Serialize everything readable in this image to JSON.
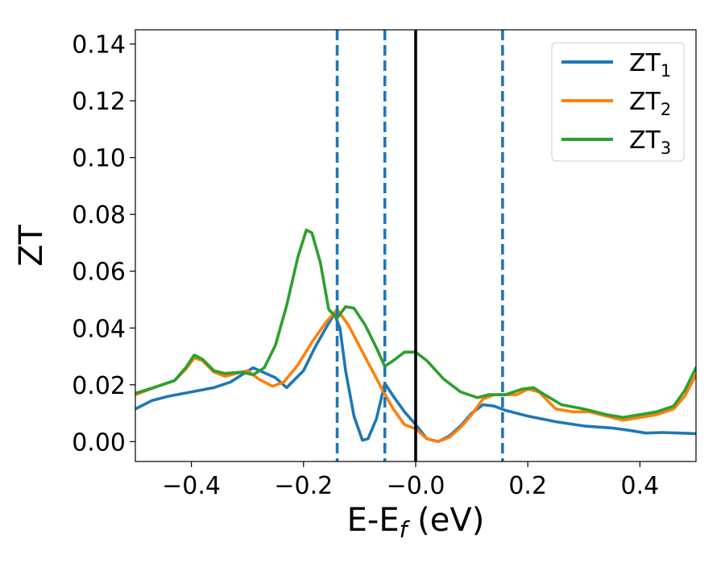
{
  "chart_data": {
    "type": "line",
    "title": "",
    "xlabel_main": "E-E",
    "xlabel_sub": "f",
    "xlabel_unit": " (eV)",
    "ylabel": "ZT",
    "xlim": [
      -0.5,
      0.5
    ],
    "ylim": [
      -0.007,
      0.145
    ],
    "xticks": [
      -0.4,
      -0.2,
      0.0,
      0.2,
      0.4
    ],
    "xtick_labels": [
      "−0.4",
      "−0.2",
      "−0.0",
      "0.2",
      "0.4"
    ],
    "yticks": [
      0.0,
      0.02,
      0.04,
      0.06,
      0.08,
      0.1,
      0.12,
      0.14
    ],
    "ytick_labels": [
      "0.00",
      "0.02",
      "0.04",
      "0.06",
      "0.08",
      "0.10",
      "0.12",
      "0.14"
    ],
    "grid": false,
    "legend_position": "top-right",
    "vlines": [
      {
        "x": -0.14,
        "style": "dashed",
        "color": "#1f77b4"
      },
      {
        "x": -0.055,
        "style": "dashed",
        "color": "#1f77b4"
      },
      {
        "x": 0.155,
        "style": "dashed",
        "color": "#1f77b4"
      },
      {
        "x": 0.0,
        "style": "solid",
        "color": "#000000"
      }
    ],
    "series": [
      {
        "name_base": "ZT",
        "name_sub": "1",
        "color": "#1f77b4",
        "points": [
          [
            -0.5,
            0.0115
          ],
          [
            -0.47,
            0.0145
          ],
          [
            -0.44,
            0.016
          ],
          [
            -0.4,
            0.0175
          ],
          [
            -0.36,
            0.019
          ],
          [
            -0.33,
            0.021
          ],
          [
            -0.31,
            0.0235
          ],
          [
            -0.29,
            0.026
          ],
          [
            -0.25,
            0.0225
          ],
          [
            -0.23,
            0.019
          ],
          [
            -0.2,
            0.025
          ],
          [
            -0.18,
            0.033
          ],
          [
            -0.16,
            0.04
          ],
          [
            -0.145,
            0.045
          ],
          [
            -0.135,
            0.04
          ],
          [
            -0.125,
            0.025
          ],
          [
            -0.11,
            0.009
          ],
          [
            -0.095,
            0.0005
          ],
          [
            -0.085,
            0.001
          ],
          [
            -0.07,
            0.008
          ],
          [
            -0.055,
            0.0205
          ],
          [
            -0.04,
            0.016
          ],
          [
            -0.02,
            0.0105
          ],
          [
            0.0,
            0.006
          ],
          [
            0.02,
            0.001
          ],
          [
            0.04,
            0.0
          ],
          [
            0.06,
            0.002
          ],
          [
            0.08,
            0.0055
          ],
          [
            0.1,
            0.01
          ],
          [
            0.12,
            0.013
          ],
          [
            0.14,
            0.0125
          ],
          [
            0.16,
            0.011
          ],
          [
            0.2,
            0.009
          ],
          [
            0.25,
            0.007
          ],
          [
            0.3,
            0.0055
          ],
          [
            0.35,
            0.0048
          ],
          [
            0.38,
            0.004
          ],
          [
            0.41,
            0.003
          ],
          [
            0.44,
            0.0032
          ],
          [
            0.47,
            0.003
          ],
          [
            0.5,
            0.0028
          ]
        ]
      },
      {
        "name_base": "ZT",
        "name_sub": "2",
        "color": "#ff7f0e",
        "points": [
          [
            -0.5,
            0.0165
          ],
          [
            -0.46,
            0.0195
          ],
          [
            -0.43,
            0.0215
          ],
          [
            -0.41,
            0.0255
          ],
          [
            -0.395,
            0.0295
          ],
          [
            -0.38,
            0.0285
          ],
          [
            -0.36,
            0.0245
          ],
          [
            -0.34,
            0.023
          ],
          [
            -0.3,
            0.025
          ],
          [
            -0.28,
            0.022
          ],
          [
            -0.255,
            0.0195
          ],
          [
            -0.235,
            0.021
          ],
          [
            -0.21,
            0.027
          ],
          [
            -0.185,
            0.035
          ],
          [
            -0.16,
            0.042
          ],
          [
            -0.14,
            0.0465
          ],
          [
            -0.12,
            0.041
          ],
          [
            -0.1,
            0.0335
          ],
          [
            -0.08,
            0.026
          ],
          [
            -0.06,
            0.0185
          ],
          [
            -0.04,
            0.0115
          ],
          [
            -0.02,
            0.006
          ],
          [
            0.0,
            0.0045
          ],
          [
            0.02,
            0.001
          ],
          [
            0.04,
            0.0
          ],
          [
            0.06,
            0.0015
          ],
          [
            0.08,
            0.005
          ],
          [
            0.1,
            0.0095
          ],
          [
            0.12,
            0.015
          ],
          [
            0.14,
            0.0165
          ],
          [
            0.16,
            0.0165
          ],
          [
            0.18,
            0.0165
          ],
          [
            0.2,
            0.0185
          ],
          [
            0.22,
            0.0175
          ],
          [
            0.25,
            0.0115
          ],
          [
            0.28,
            0.0105
          ],
          [
            0.31,
            0.0105
          ],
          [
            0.34,
            0.009
          ],
          [
            0.37,
            0.0075
          ],
          [
            0.4,
            0.0085
          ],
          [
            0.43,
            0.0095
          ],
          [
            0.46,
            0.0115
          ],
          [
            0.48,
            0.016
          ],
          [
            0.5,
            0.0235
          ]
        ]
      },
      {
        "name_base": "ZT",
        "name_sub": "3",
        "color": "#2ca02c",
        "points": [
          [
            -0.5,
            0.017
          ],
          [
            -0.46,
            0.0195
          ],
          [
            -0.43,
            0.0215
          ],
          [
            -0.41,
            0.026
          ],
          [
            -0.395,
            0.0305
          ],
          [
            -0.38,
            0.029
          ],
          [
            -0.36,
            0.025
          ],
          [
            -0.34,
            0.024
          ],
          [
            -0.31,
            0.0245
          ],
          [
            -0.29,
            0.0235
          ],
          [
            -0.27,
            0.026
          ],
          [
            -0.25,
            0.034
          ],
          [
            -0.23,
            0.048
          ],
          [
            -0.21,
            0.065
          ],
          [
            -0.195,
            0.0745
          ],
          [
            -0.185,
            0.0735
          ],
          [
            -0.17,
            0.063
          ],
          [
            -0.155,
            0.0465
          ],
          [
            -0.14,
            0.0435
          ],
          [
            -0.125,
            0.0475
          ],
          [
            -0.11,
            0.047
          ],
          [
            -0.09,
            0.041
          ],
          [
            -0.07,
            0.033
          ],
          [
            -0.055,
            0.0265
          ],
          [
            -0.04,
            0.0285
          ],
          [
            -0.02,
            0.0315
          ],
          [
            0.0,
            0.0315
          ],
          [
            0.02,
            0.0285
          ],
          [
            0.05,
            0.022
          ],
          [
            0.08,
            0.0175
          ],
          [
            0.11,
            0.0155
          ],
          [
            0.13,
            0.0165
          ],
          [
            0.16,
            0.0165
          ],
          [
            0.19,
            0.0185
          ],
          [
            0.21,
            0.019
          ],
          [
            0.23,
            0.0165
          ],
          [
            0.26,
            0.013
          ],
          [
            0.3,
            0.0115
          ],
          [
            0.34,
            0.0095
          ],
          [
            0.37,
            0.0085
          ],
          [
            0.4,
            0.0095
          ],
          [
            0.43,
            0.0105
          ],
          [
            0.46,
            0.0125
          ],
          [
            0.48,
            0.018
          ],
          [
            0.5,
            0.026
          ]
        ]
      }
    ]
  }
}
